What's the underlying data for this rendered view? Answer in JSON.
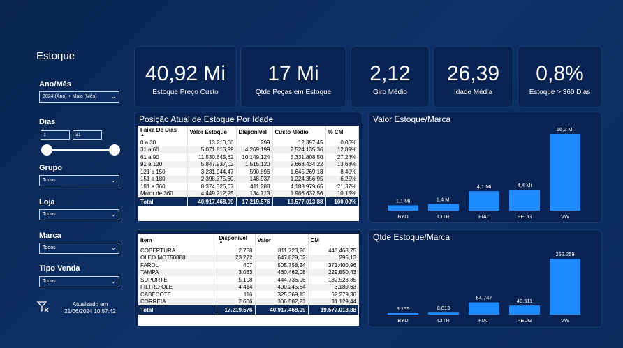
{
  "sidebar": {
    "title": "Estoque",
    "ano_mes_label": "Ano/Mês",
    "ano_mes_value": "2024 (Ano) + Maio (Mês)",
    "dias_label": "Dias",
    "dias_min": "1",
    "dias_max": "31",
    "grupo_label": "Grupo",
    "grupo_value": "Todos",
    "loja_label": "Loja",
    "loja_value": "Todos",
    "marca_label": "Marca",
    "marca_value": "Todos",
    "tipo_venda_label": "Tipo Venda",
    "tipo_venda_value": "Todos",
    "updated_line1": "Atualizado em",
    "updated_line2": "21/06/2024 10:57:42"
  },
  "kpis": [
    {
      "value": "40,92 Mi",
      "label": "Estoque Preço Custo"
    },
    {
      "value": "17 Mi",
      "label": "Qtde Peças em Estoque"
    },
    {
      "value": "2,12",
      "label": "Giro Médio"
    },
    {
      "value": "26,39",
      "label": "Idade Média"
    },
    {
      "value": "0,8%",
      "label": "Estoque > 360 Dias"
    }
  ],
  "age_table": {
    "title": "Posição Atual de Estoque Por Idade",
    "headers": [
      "Faixa De Dias",
      "Valor Estoque",
      "Disponível",
      "Custo Médio",
      "% CM"
    ],
    "rows": [
      [
        "0 a 30",
        "13.210,06",
        "299",
        "12.397,45",
        "0,06%"
      ],
      [
        "31 a 60",
        "5.071.816,99",
        "4.269.199",
        "2.524.135,36",
        "12,89%"
      ],
      [
        "61 a 90",
        "11.530.645,62",
        "10.149.124",
        "5.331.808,50",
        "27,24%"
      ],
      [
        "91 a 120",
        "5.847.937,02",
        "1.515.120",
        "2.668.434,22",
        "13,63%"
      ],
      [
        "121 a 150",
        "3.231.944,47",
        "590.896",
        "1.645.269,18",
        "8,40%"
      ],
      [
        "151 a 180",
        "2.398.375,60",
        "148.937",
        "1.224.356,95",
        "6,25%"
      ],
      [
        "181 a 360",
        "8.374.326,07",
        "411.288",
        "4.183.979,65",
        "21,37%"
      ],
      [
        "Maior de 360",
        "4.449.212,25",
        "134.713",
        "1.986.632,56",
        "10,15%"
      ]
    ],
    "total": [
      "Total",
      "40.917.468,09",
      "17.219.576",
      "19.577.013,88",
      "100,00%"
    ]
  },
  "item_table": {
    "headers": [
      "Item",
      "Disponível",
      "Valor",
      "CM"
    ],
    "rows": [
      [
        "COBERTURA",
        "2.788",
        "811.723,26",
        "446.468,75"
      ],
      [
        "OLEO MOT50888",
        "23.272",
        "647.829,02",
        "295,13"
      ],
      [
        "FAROL",
        "407",
        "505.758,24",
        "371.400,96"
      ],
      [
        "TAMPA",
        "3.083",
        "460.462,08",
        "229.850,43"
      ],
      [
        "SUPORTE",
        "5.108",
        "444.736,06",
        "182.523,85"
      ],
      [
        "FILTRO OLE",
        "4.414",
        "400.245,64",
        "3.180,63"
      ],
      [
        "CABECOTE",
        "116",
        "325.369,13",
        "62.279,36"
      ],
      [
        "CORREIA",
        "2.666",
        "306.582,23",
        "31.129,44"
      ]
    ],
    "total": [
      "Total",
      "17.219.576",
      "40.917.468,09",
      "19.577.013,88"
    ]
  },
  "chart_data": [
    {
      "type": "bar",
      "title": "Valor Estoque/Marca",
      "categories": [
        "BYD",
        "CITR",
        "FIAT",
        "PEUG",
        "VW"
      ],
      "values": [
        1.1,
        1.4,
        4.1,
        4.4,
        16.2
      ],
      "data_labels": [
        "1,1 Mi",
        "1,4 Mi",
        "4,1 Mi",
        "4,4 Mi",
        "16,2 Mi"
      ],
      "ylim": [
        0,
        16.2
      ],
      "bar_color": "#1f8bff"
    },
    {
      "type": "bar",
      "title": "Qtde Estoque/Marca",
      "categories": [
        "BYD",
        "CITR",
        "FIAT",
        "PEUG",
        "VW"
      ],
      "values": [
        3155,
        8813,
        54747,
        40511,
        252259
      ],
      "data_labels": [
        "3.155",
        "8.813",
        "54.747",
        "40.511",
        "252.259"
      ],
      "ylim": [
        0,
        252259
      ],
      "bar_color": "#1f8bff"
    }
  ]
}
